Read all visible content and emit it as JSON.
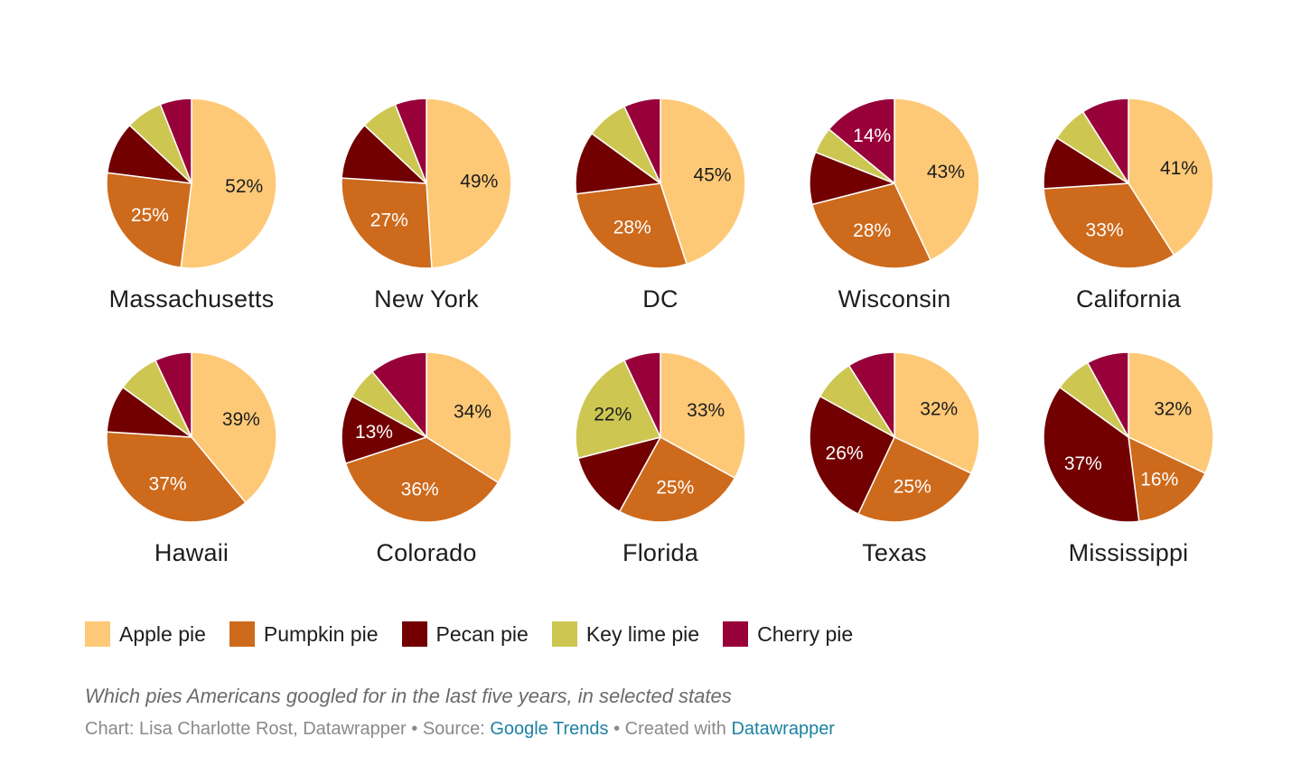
{
  "colors": {
    "Apple pie": "#fec977",
    "Pumpkin pie": "#cd6a1c",
    "Pecan pie": "#720000",
    "Key lime pie": "#cdc752",
    "Cherry pie": "#980039"
  },
  "label_text_color": {
    "Apple pie": "#1d1d1d",
    "Key lime pie": "#1d1d1d",
    "Pumpkin pie": "#ffffff",
    "Pecan pie": "#ffffff",
    "Cherry pie": "#ffffff"
  },
  "chart_data": {
    "type": "pie",
    "series_order": [
      "Apple pie",
      "Pumpkin pie",
      "Pecan pie",
      "Key lime pie",
      "Cherry pie"
    ],
    "pies": [
      {
        "state": "Massachusetts",
        "values": [
          52,
          25,
          10,
          7,
          6
        ],
        "labels": [
          "52%",
          "25%",
          "",
          "",
          ""
        ]
      },
      {
        "state": "New York",
        "values": [
          49,
          27,
          11,
          7,
          6
        ],
        "labels": [
          "49%",
          "27%",
          "",
          "",
          ""
        ]
      },
      {
        "state": "DC",
        "values": [
          45,
          28,
          12,
          8,
          7
        ],
        "labels": [
          "45%",
          "28%",
          "",
          "",
          ""
        ]
      },
      {
        "state": "Wisconsin",
        "values": [
          43,
          28,
          10,
          5,
          14
        ],
        "labels": [
          "43%",
          "28%",
          "",
          "",
          "14%"
        ]
      },
      {
        "state": "California",
        "values": [
          41,
          33,
          10,
          7,
          9
        ],
        "labels": [
          "41%",
          "33%",
          "",
          "",
          ""
        ]
      },
      {
        "state": "Hawaii",
        "values": [
          39,
          37,
          9,
          8,
          7
        ],
        "labels": [
          "39%",
          "37%",
          "",
          "",
          ""
        ]
      },
      {
        "state": "Colorado",
        "values": [
          34,
          36,
          13,
          6,
          11
        ],
        "labels": [
          "34%",
          "36%",
          "13%",
          "",
          ""
        ]
      },
      {
        "state": "Florida",
        "values": [
          33,
          25,
          13,
          22,
          7
        ],
        "labels": [
          "33%",
          "25%",
          "",
          "22%",
          ""
        ]
      },
      {
        "state": "Texas",
        "values": [
          32,
          25,
          26,
          8,
          9
        ],
        "labels": [
          "32%",
          "25%",
          "26%",
          "",
          ""
        ]
      },
      {
        "state": "Mississippi",
        "values": [
          32,
          16,
          37,
          7,
          8
        ],
        "labels": [
          "32%",
          "16%",
          "37%",
          "",
          ""
        ]
      }
    ]
  },
  "legend": [
    {
      "label": "Apple pie"
    },
    {
      "label": "Pumpkin pie"
    },
    {
      "label": "Pecan pie"
    },
    {
      "label": "Key lime pie"
    },
    {
      "label": "Cherry pie"
    }
  ],
  "notes": {
    "description": "Which pies Americans googled for in the last five years, in selected states",
    "credit_prefix": "Chart: Lisa Charlotte Rost, Datawrapper • Source: ",
    "source_link": "Google Trends",
    "credit_mid": " • Created with ",
    "tool_link": "Datawrapper"
  }
}
